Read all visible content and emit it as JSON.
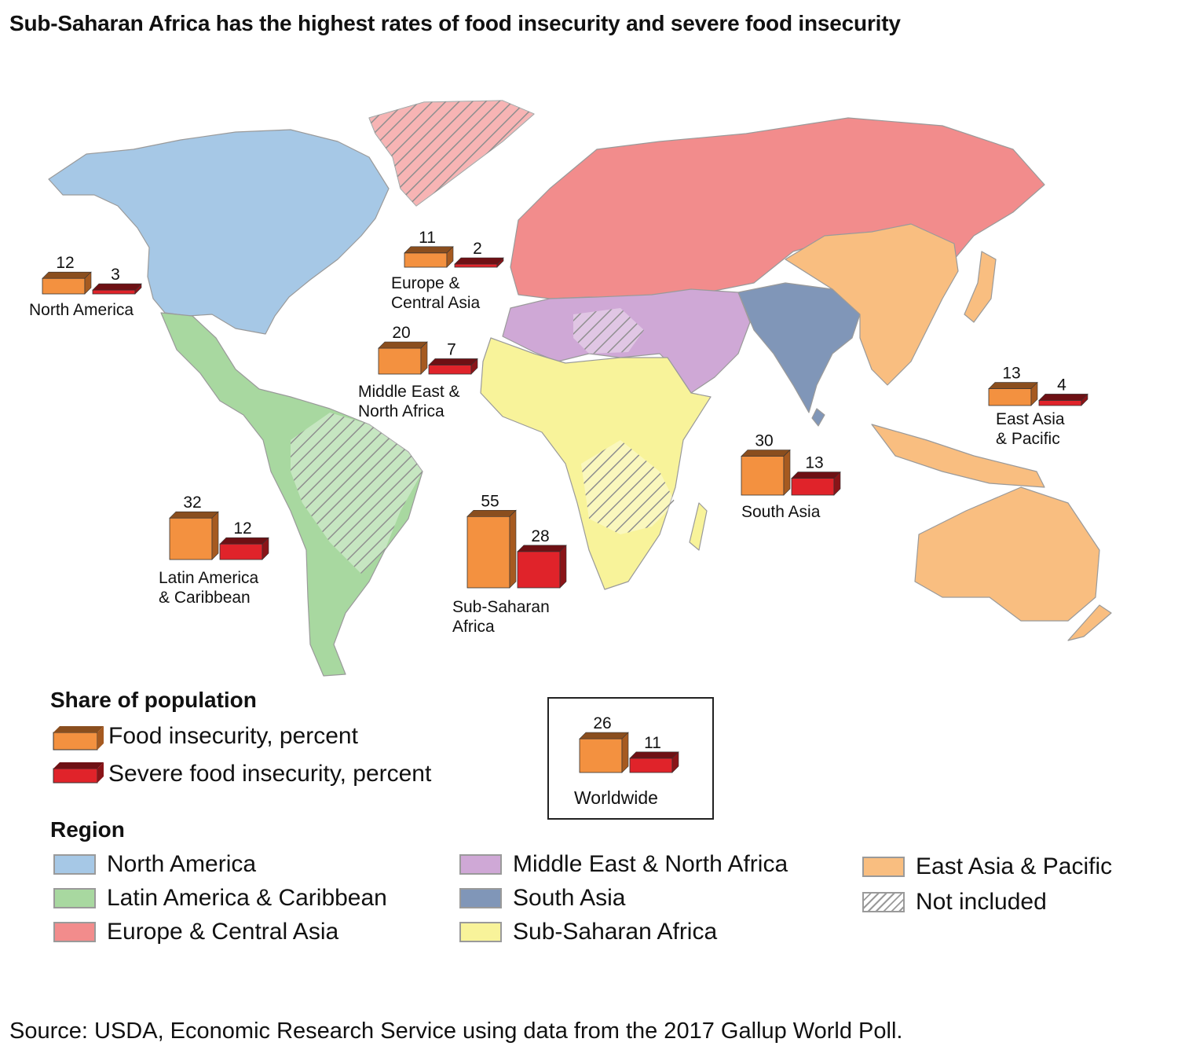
{
  "title": "Sub-Saharan Africa has the highest rates of food insecurity and severe food insecurity",
  "colors": {
    "north_america": "#a6c8e6",
    "latin_america": "#a8d8a0",
    "europe_central_asia": "#f28c8c",
    "middle_east_north_africa": "#cfa8d6",
    "south_asia": "#8096b8",
    "sub_saharan_africa": "#f8f39a",
    "east_asia_pacific": "#f9be80",
    "food_insecurity_bar": "#f39140",
    "severe_food_insecurity_bar": "#e0232a"
  },
  "chart_data": {
    "type": "bar",
    "series_names": [
      "Food insecurity, percent",
      "Severe food insecurity, percent"
    ],
    "regions": [
      {
        "key": "north_america",
        "name_lines": [
          "North America"
        ],
        "food": 12,
        "severe": 3
      },
      {
        "key": "europe_central_asia",
        "name_lines": [
          "Europe &",
          "Central Asia"
        ],
        "food": 11,
        "severe": 2
      },
      {
        "key": "middle_east_north_africa",
        "name_lines": [
          "Middle East &",
          "North Africa"
        ],
        "food": 20,
        "severe": 7
      },
      {
        "key": "latin_america",
        "name_lines": [
          "Latin America",
          "& Caribbean"
        ],
        "food": 32,
        "severe": 12
      },
      {
        "key": "sub_saharan_africa",
        "name_lines": [
          "Sub-Saharan",
          "Africa"
        ],
        "food": 55,
        "severe": 28
      },
      {
        "key": "south_asia",
        "name_lines": [
          "South Asia"
        ],
        "food": 30,
        "severe": 13
      },
      {
        "key": "east_asia_pacific",
        "name_lines": [
          "East Asia",
          "& Pacific"
        ],
        "food": 13,
        "severe": 4
      },
      {
        "key": "worldwide",
        "name_lines": [
          "Worldwide"
        ],
        "food": 26,
        "severe": 11
      }
    ]
  },
  "legend": {
    "share_heading": "Share of population",
    "food_label": "Food insecurity, percent",
    "severe_label": "Severe food insecurity, percent",
    "region_heading": "Region",
    "regions": [
      {
        "label": "North America",
        "color_key": "north_america"
      },
      {
        "label": "Latin America & Caribbean",
        "color_key": "latin_america"
      },
      {
        "label": "Europe & Central Asia",
        "color_key": "europe_central_asia"
      },
      {
        "label": "Middle East & North Africa",
        "color_key": "middle_east_north_africa"
      },
      {
        "label": "South Asia",
        "color_key": "south_asia"
      },
      {
        "label": "Sub-Saharan Africa",
        "color_key": "sub_saharan_africa"
      },
      {
        "label": "East Asia & Pacific",
        "color_key": "east_asia_pacific"
      },
      {
        "label": "Not included",
        "color_key": "hatch"
      }
    ]
  },
  "source": "Source: USDA, Economic Research Service using data from the 2017 Gallup World Poll."
}
